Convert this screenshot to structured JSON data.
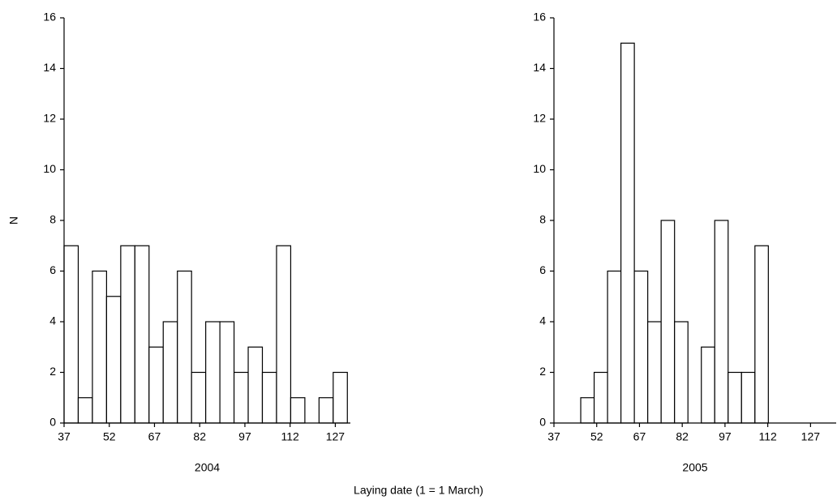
{
  "xlabel": "Laying date (1 = 1 March)",
  "chart_data": [
    {
      "type": "histogram",
      "xlabel": "2004",
      "ylabel": "N",
      "bins": [
        37,
        41.7,
        46.4,
        51.1,
        55.8,
        60.5,
        65.2,
        69.9,
        74.6,
        79.3,
        84,
        88.7,
        93.4,
        98.1,
        102.8,
        107.5,
        112.2,
        116.9,
        121.6,
        126.3,
        131
      ],
      "values": [
        7,
        1,
        6,
        5,
        7,
        7,
        3,
        4,
        6,
        2,
        4,
        4,
        2,
        3,
        2,
        7,
        1,
        0,
        1,
        2
      ],
      "color": "#ffffff",
      "xlim": [
        37,
        132
      ],
      "xticks": [
        37,
        52,
        67,
        82,
        97,
        112,
        127
      ],
      "ylim": [
        0,
        16
      ],
      "yticks": [
        0,
        2,
        4,
        6,
        8,
        10,
        12,
        14,
        16
      ]
    },
    {
      "type": "histogram",
      "xlabel": "2005",
      "bins": [
        37,
        41.7,
        46.4,
        51.1,
        55.8,
        60.5,
        65.2,
        69.9,
        74.6,
        79.3,
        84,
        88.7,
        93.4,
        98.1,
        102.8,
        107.5,
        112.2,
        116.9,
        121.6,
        126.3,
        131
      ],
      "values": [
        0,
        0,
        1,
        2,
        6,
        15,
        6,
        4,
        8,
        4,
        0,
        3,
        8,
        2,
        2,
        7,
        0,
        0,
        0,
        0
      ],
      "color": "#ffffff",
      "xlim": [
        37,
        136
      ],
      "xticks": [
        37,
        52,
        67,
        82,
        97,
        112,
        127
      ],
      "ylim": [
        0,
        16
      ],
      "yticks": [
        0,
        2,
        4,
        6,
        8,
        10,
        12,
        14,
        16
      ]
    }
  ]
}
